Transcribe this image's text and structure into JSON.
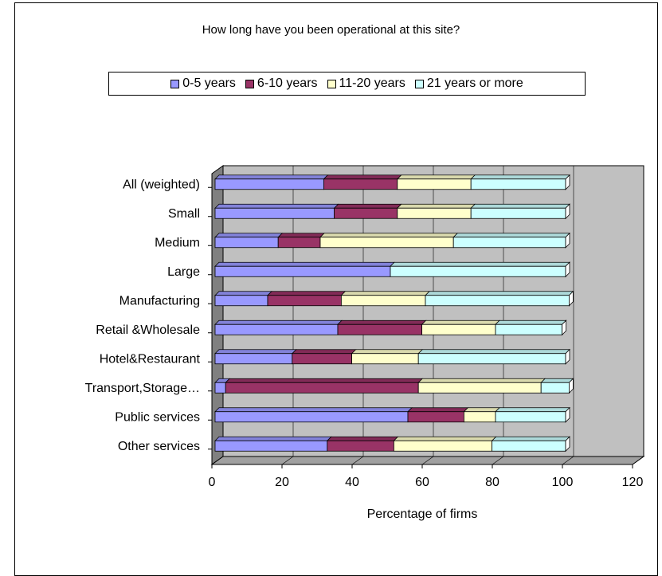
{
  "chart_data": {
    "type": "bar",
    "stacked": true,
    "orientation": "horizontal",
    "title": "How long have you been operational at this site?",
    "xlabel": "Percentage of firms",
    "ylabel": "",
    "xlim": [
      0,
      120
    ],
    "xticks": [
      "0",
      "20",
      "40",
      "60",
      "80",
      "100",
      "120"
    ],
    "categories": [
      "All (weighted)",
      "Small",
      "Medium",
      "Large",
      "Manufacturing",
      "Retail &Wholesale",
      "Hotel&Restaurant",
      "Transport,Storage…",
      "Public services",
      "Other services"
    ],
    "series": [
      {
        "name": "0-5 years",
        "color": "#9999FF",
        "values": [
          31,
          34,
          18,
          50,
          15,
          35,
          22,
          3,
          55,
          32
        ]
      },
      {
        "name": "6-10 years",
        "color": "#993366",
        "values": [
          21,
          18,
          12,
          0,
          21,
          24,
          17,
          55,
          16,
          19
        ]
      },
      {
        "name": "11-20 years",
        "color": "#FFFFCC",
        "values": [
          21,
          21,
          38,
          0,
          24,
          21,
          19,
          35,
          9,
          28
        ]
      },
      {
        "name": "21 years or more",
        "color": "#CCFFFF",
        "values": [
          27,
          27,
          32,
          50,
          41,
          19,
          42,
          8,
          20,
          21
        ]
      }
    ],
    "grid": true,
    "legend_position": "top"
  }
}
